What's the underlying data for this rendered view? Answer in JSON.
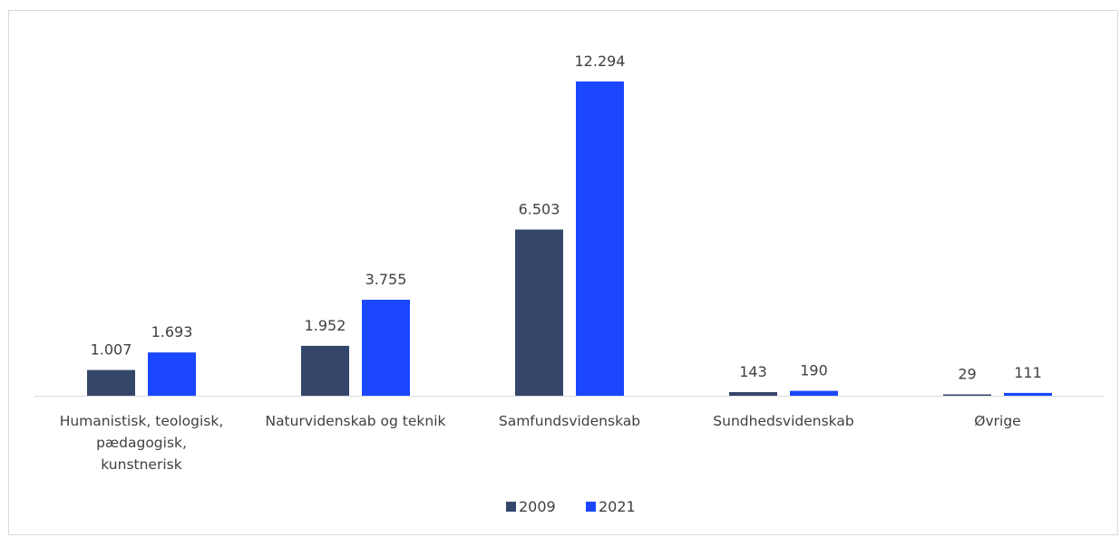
{
  "chart_data": {
    "type": "bar",
    "title": "",
    "xlabel": "",
    "ylabel": "",
    "categories": [
      [
        "Humanistisk, teologisk,",
        "pædagogisk,",
        "kunstnerisk"
      ],
      [
        "Naturvidenskab og teknik"
      ],
      [
        "Samfundsvidenskab"
      ],
      [
        "Sundhedsvidenskab"
      ],
      [
        "Øvrige"
      ]
    ],
    "series": [
      {
        "name": "2009",
        "color": "#34466a",
        "values": [
          1007,
          1952,
          6503,
          143,
          29
        ],
        "labels": [
          "1.007",
          "1.952",
          "6.503",
          "143",
          "29"
        ]
      },
      {
        "name": "2021",
        "color": "#1a47ff",
        "values": [
          1693,
          3755,
          12294,
          190,
          111
        ],
        "labels": [
          "1.693",
          "3.755",
          "12.294",
          "190",
          "111"
        ]
      }
    ],
    "ylim": [
      0,
      12294
    ],
    "grid": false,
    "legend_position": "bottom"
  }
}
